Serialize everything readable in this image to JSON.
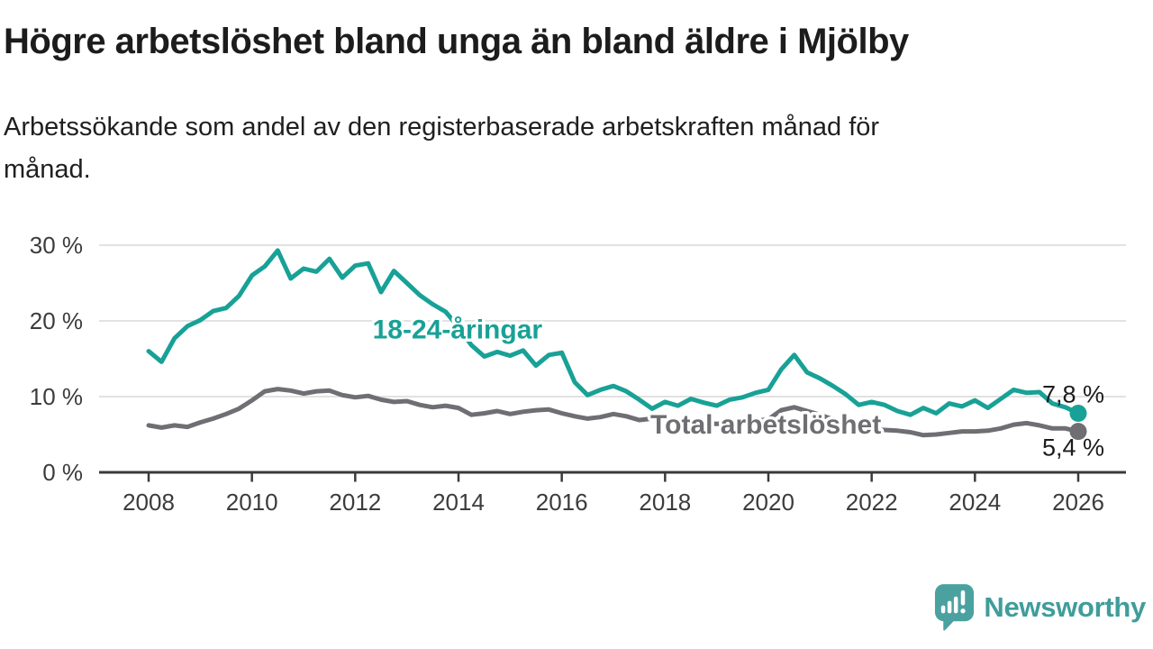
{
  "header": {
    "title": "Högre arbetslöshet bland unga än bland äldre i Mjölby",
    "subtitle_lines": [
      "Arbetssökande som andel av den registerbaserade arbetskraften månad för",
      "månad."
    ]
  },
  "chart_data": {
    "type": "line",
    "x_unit": "decimal_year",
    "grid": "horizontal",
    "xlim": [
      2008,
      2026
    ],
    "ylim": [
      0,
      31.5
    ],
    "xticks": [
      2008,
      2010,
      2012,
      2014,
      2016,
      2018,
      2020,
      2022,
      2024,
      2026
    ],
    "xtick_labels": [
      "2008",
      "2010",
      "2012",
      "2014",
      "2016",
      "2018",
      "2020",
      "2022",
      "2024",
      "2026"
    ],
    "yticks": [
      0,
      10,
      20,
      30
    ],
    "ytick_labels": [
      "0 %",
      "10 %",
      "20 %",
      "30 %"
    ],
    "x": [
      2008,
      2008.25,
      2008.5,
      2008.75,
      2009,
      2009.25,
      2009.5,
      2009.75,
      2010,
      2010.25,
      2010.5,
      2010.75,
      2011,
      2011.25,
      2011.5,
      2011.75,
      2012,
      2012.25,
      2012.5,
      2012.75,
      2013,
      2013.25,
      2013.5,
      2013.75,
      2014,
      2014.25,
      2014.5,
      2014.75,
      2015,
      2015.25,
      2015.5,
      2015.75,
      2016,
      2016.25,
      2016.5,
      2016.75,
      2017,
      2017.25,
      2017.5,
      2017.75,
      2018,
      2018.25,
      2018.5,
      2018.75,
      2019,
      2019.25,
      2019.5,
      2019.75,
      2020,
      2020.25,
      2020.5,
      2020.75,
      2021,
      2021.25,
      2021.5,
      2021.75,
      2022,
      2022.25,
      2022.5,
      2022.75,
      2023,
      2023.25,
      2023.5,
      2023.75,
      2024,
      2024.25,
      2024.5,
      2024.75,
      2025,
      2025.25,
      2025.5,
      2025.75,
      2026
    ],
    "series": [
      {
        "name": "18-24-åringar",
        "color": "#18a196",
        "end_label": "7,8 %",
        "end_value": 7.8,
        "label_x": 2013.98,
        "label_y": 17.7,
        "values": [
          16.0,
          14.6,
          17.7,
          19.3,
          20.1,
          21.3,
          21.7,
          23.3,
          26.0,
          27.2,
          29.3,
          25.6,
          26.9,
          26.5,
          28.2,
          25.7,
          27.3,
          27.6,
          23.8,
          26.6,
          25.0,
          23.4,
          22.2,
          21.2,
          19.2,
          16.8,
          15.3,
          15.9,
          15.4,
          16.1,
          14.1,
          15.5,
          15.8,
          11.9,
          10.2,
          10.9,
          11.4,
          10.7,
          9.6,
          8.4,
          9.3,
          8.8,
          9.7,
          9.2,
          8.8,
          9.6,
          9.9,
          10.5,
          10.9,
          13.6,
          15.5,
          13.2,
          12.4,
          11.4,
          10.3,
          8.9,
          9.3,
          8.9,
          8.1,
          7.6,
          8.5,
          7.8,
          9.1,
          8.7,
          9.5,
          8.5,
          9.7,
          10.9,
          10.5,
          10.6,
          9.1,
          8.6,
          7.8
        ]
      },
      {
        "name": "Total arbetslöshet",
        "color": "#6e6e73",
        "end_label": "5,4 %",
        "end_value": 5.4,
        "label_x": 2019.95,
        "label_y": 5.1,
        "values": [
          6.2,
          5.9,
          6.2,
          6.0,
          6.6,
          7.1,
          7.7,
          8.4,
          9.5,
          10.7,
          11.0,
          10.8,
          10.4,
          10.7,
          10.8,
          10.2,
          9.9,
          10.1,
          9.6,
          9.3,
          9.4,
          8.9,
          8.6,
          8.8,
          8.5,
          7.6,
          7.8,
          8.1,
          7.7,
          8.0,
          8.2,
          8.3,
          7.8,
          7.4,
          7.1,
          7.3,
          7.7,
          7.4,
          6.9,
          7.1,
          6.9,
          6.6,
          6.7,
          6.5,
          6.4,
          6.5,
          6.6,
          6.8,
          7.0,
          8.2,
          8.6,
          8.1,
          7.6,
          7.0,
          6.4,
          5.8,
          5.6,
          5.6,
          5.5,
          5.3,
          4.9,
          5.0,
          5.2,
          5.4,
          5.4,
          5.5,
          5.8,
          6.3,
          6.5,
          6.2,
          5.8,
          5.8,
          5.4
        ]
      }
    ]
  },
  "branding": {
    "name": "Newsworthy",
    "logo_icon": "speech-bubble-bar-chart-icon",
    "color": "#3f9d9b"
  }
}
